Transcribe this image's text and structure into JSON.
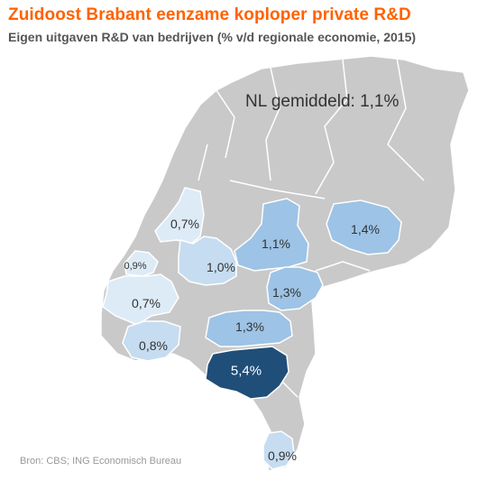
{
  "title": "Zuidoost Brabant eenzame koploper private R&D",
  "subtitle": "Eigen uitgaven R&D van bedrijven (% v/d regionale economie, 2015)",
  "national_average": "NL gemiddeld: 1,1%",
  "source": "Bron: CBS; ING Economisch Bureau",
  "colors": {
    "title": "#ff6200",
    "base_land": "#c9c9c9",
    "borders": "#ffffff",
    "tier_low": "#ddebf7",
    "tier_mid_low": "#c6dcf0",
    "tier_mid": "#9dc3e6",
    "tier_high": "#1f4e79"
  },
  "regions": [
    {
      "id": "noord-holland-zuid",
      "label": "0,7%",
      "value": 0.7
    },
    {
      "id": "zuid-holland-noordwest",
      "label": "0,9%",
      "value": 0.9
    },
    {
      "id": "zuid-holland-zuid",
      "label": "0,7%",
      "value": 0.7
    },
    {
      "id": "utrecht",
      "label": "1,0%",
      "value": 1.0
    },
    {
      "id": "veluwe",
      "label": "1,1%",
      "value": 1.1
    },
    {
      "id": "twente",
      "label": "1,4%",
      "value": 1.4
    },
    {
      "id": "arnhem-nijmegen",
      "label": "1,3%",
      "value": 1.3
    },
    {
      "id": "noordoost-brabant",
      "label": "1,3%",
      "value": 1.3
    },
    {
      "id": "west-brabant",
      "label": "0,8%",
      "value": 0.8
    },
    {
      "id": "zuidoost-brabant",
      "label": "5,4%",
      "value": 5.4
    },
    {
      "id": "zuid-limburg",
      "label": "0,9%",
      "value": 0.9
    }
  ]
}
